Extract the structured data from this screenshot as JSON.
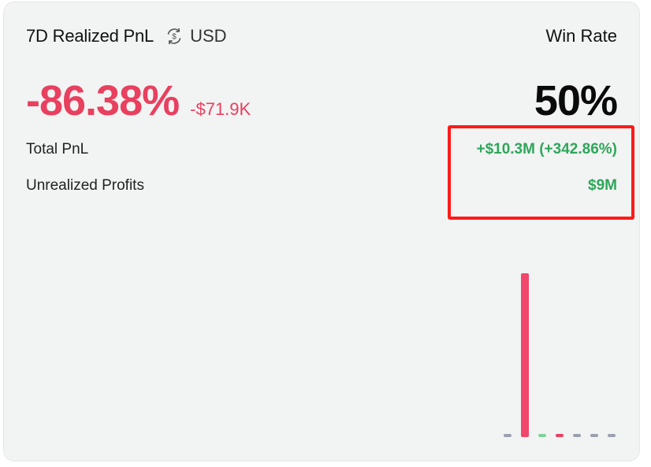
{
  "header": {
    "title": "7D Realized PnL",
    "currency_label": "USD",
    "currency_icon": "dollar-swap-icon",
    "win_rate_label": "Win Rate"
  },
  "pnl": {
    "percent": "-86.38%",
    "amount": "-$71.9K",
    "color": "#e8405f"
  },
  "win_rate": {
    "value": "50%"
  },
  "stats": {
    "total_pnl_label": "Total PnL",
    "total_pnl_value": "+$10.3M (+342.86%)",
    "unrealized_label": "Unrealized Profits",
    "unrealized_value": "$9M",
    "positive_color": "#2ea65a"
  },
  "chart_data": {
    "type": "bar",
    "categories": [
      "1",
      "2",
      "3",
      "4",
      "5",
      "6",
      "7"
    ],
    "values": [
      0,
      100,
      1,
      -1,
      0,
      0,
      0
    ],
    "colors": [
      "#9aa0ad",
      "#f0476a",
      "#7fd39a",
      "#e8405f",
      "#9aa0ad",
      "#9aa0ad",
      "#9aa0ad"
    ],
    "title": "",
    "xlabel": "",
    "ylabel": "",
    "grid": false
  }
}
